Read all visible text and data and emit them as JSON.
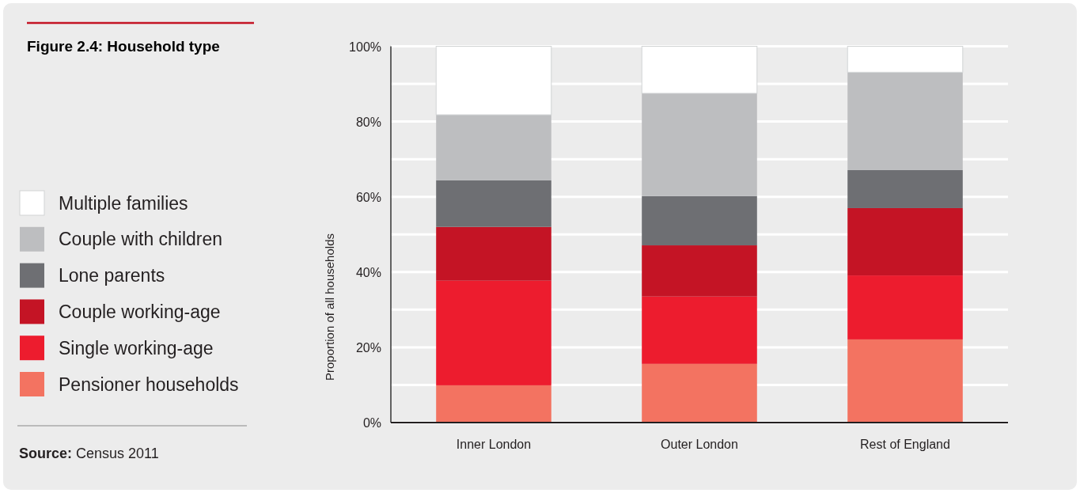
{
  "chart_data": {
    "type": "bar",
    "stacked": true,
    "title": "Figure 2.4: Household type",
    "ylabel": "Proportion of all households",
    "annotations": [
      "Source: Census 2011"
    ],
    "categories": [
      "Inner London",
      "Outer London",
      "Rest of England"
    ],
    "series": [
      {
        "name": "Pensioner households",
        "color": "#f37361",
        "values": [
          9.9,
          15.6,
          22.1
        ]
      },
      {
        "name": "Single working-age",
        "color": "#ed1c2e",
        "values": [
          27.8,
          17.9,
          17.0
        ]
      },
      {
        "name": "Couple working-age",
        "color": "#c41425",
        "values": [
          14.3,
          13.6,
          17.9
        ]
      },
      {
        "name": "Lone parents",
        "color": "#6e6f73",
        "values": [
          12.4,
          13.1,
          10.1
        ]
      },
      {
        "name": "Couple with children",
        "color": "#bdbec0",
        "values": [
          17.4,
          27.3,
          26.0
        ]
      },
      {
        "name": "Multiple families",
        "color": "#ffffff",
        "values": [
          18.2,
          12.5,
          6.9
        ]
      }
    ],
    "ylim": [
      0,
      100
    ],
    "yticks": [
      {
        "value": 0,
        "label": "0%"
      },
      {
        "value": 10,
        "label": null
      },
      {
        "value": 20,
        "label": "20%"
      },
      {
        "value": 30,
        "label": null
      },
      {
        "value": 40,
        "label": "40%"
      },
      {
        "value": 50,
        "label": null
      },
      {
        "value": 60,
        "label": "60%"
      },
      {
        "value": 70,
        "label": null
      },
      {
        "value": 80,
        "label": "80%"
      },
      {
        "value": 90,
        "label": null
      },
      {
        "value": 100,
        "label": "100%"
      }
    ],
    "grid": "y",
    "legend": "left"
  }
}
